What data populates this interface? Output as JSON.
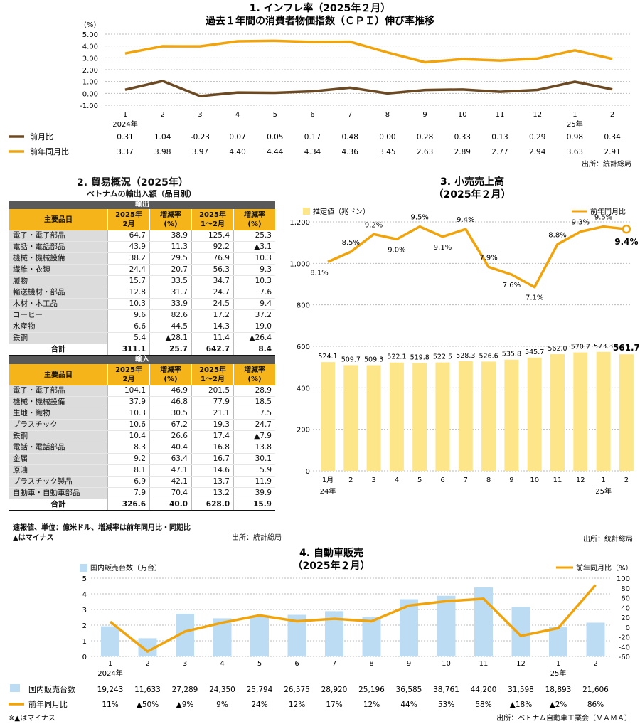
{
  "chart_data": [
    {
      "id": "cpi",
      "type": "line",
      "title": "1. インフレ率（2025年２月）",
      "subtitle": "過去１年間の消費者物価指数（ＣＰＩ）伸び率推移",
      "ylabel": "(%)",
      "ylim": [
        -1.0,
        5.0
      ],
      "yticks": [
        "5.00",
        "4.00",
        "3.00",
        "2.00",
        "1.00",
        "0.00",
        "-1.00"
      ],
      "categories": [
        "1",
        "2",
        "3",
        "4",
        "5",
        "6",
        "7",
        "8",
        "9",
        "10",
        "11",
        "12",
        "1",
        "2"
      ],
      "year_labels": [
        "2024年",
        "25年"
      ],
      "series": [
        {
          "name": "前月比",
          "color": "#6b4a23",
          "values": [
            0.31,
            1.04,
            -0.23,
            0.07,
            0.05,
            0.17,
            0.48,
            0.0,
            0.28,
            0.33,
            0.13,
            0.29,
            0.98,
            0.34
          ],
          "labels": [
            "0.31",
            "1.04",
            "-0.23",
            "0.07",
            "0.05",
            "0.17",
            "0.48",
            "0.00",
            "0.28",
            "0.33",
            "0.13",
            "0.29",
            "0.98",
            "0.34"
          ]
        },
        {
          "name": "前年同月比",
          "color": "#f0a30a",
          "values": [
            3.37,
            3.98,
            3.97,
            4.4,
            4.44,
            4.34,
            4.36,
            3.45,
            2.63,
            2.89,
            2.77,
            2.94,
            3.63,
            2.91
          ],
          "labels": [
            "3.37",
            "3.98",
            "3.97",
            "4.40",
            "4.44",
            "4.34",
            "4.36",
            "3.45",
            "2.63",
            "2.89",
            "2.77",
            "2.94",
            "3.63",
            "2.91"
          ]
        }
      ],
      "source": "出所：統計総局"
    },
    {
      "id": "trade",
      "type": "table",
      "title": "2. 貿易概況（2025年）",
      "subtitle": "ベトナムの輸出入額（品目別）",
      "columns": [
        "主要品目",
        "2025年\n2月",
        "増減率\n(%)",
        "2025年\n1～2月",
        "増減率\n(%)"
      ],
      "export": {
        "label": "輸出",
        "rows": [
          [
            "電子・電子部品",
            "64.7",
            "38.9",
            "125.4",
            "25.3"
          ],
          [
            "電話・電話部品",
            "43.9",
            "11.3",
            "92.2",
            "▲3.1"
          ],
          [
            "機械・機械設備",
            "38.2",
            "29.5",
            "76.9",
            "10.3"
          ],
          [
            "繊維・衣類",
            "24.4",
            "20.7",
            "56.3",
            "9.3"
          ],
          [
            "履物",
            "15.7",
            "33.5",
            "34.7",
            "10.3"
          ],
          [
            "輸送機材・部品",
            "12.8",
            "31.7",
            "24.7",
            "7.6"
          ],
          [
            "木材・木工品",
            "10.3",
            "33.9",
            "24.5",
            "9.4"
          ],
          [
            "コーヒー",
            "9.6",
            "82.6",
            "17.2",
            "37.2"
          ],
          [
            "水産物",
            "6.6",
            "44.5",
            "14.3",
            "19.0"
          ],
          [
            "鉄鋼",
            "5.4",
            "▲28.1",
            "11.4",
            "▲26.4"
          ]
        ],
        "total": [
          "合計",
          "311.1",
          "25.7",
          "642.7",
          "8.4"
        ]
      },
      "import": {
        "label": "輸入",
        "rows": [
          [
            "電子・電子部品",
            "104.1",
            "46.9",
            "201.5",
            "28.9"
          ],
          [
            "機械・機械設備",
            "37.9",
            "46.8",
            "77.9",
            "18.5"
          ],
          [
            "生地・織物",
            "10.3",
            "30.5",
            "21.1",
            "7.5"
          ],
          [
            "プラスチック",
            "10.6",
            "67.2",
            "19.3",
            "24.7"
          ],
          [
            "鉄鋼",
            "10.4",
            "26.6",
            "17.4",
            "▲7.9"
          ],
          [
            "電話・電話部品",
            "8.3",
            "40.4",
            "16.8",
            "13.8"
          ],
          [
            "金属",
            "9.2",
            "63.4",
            "16.7",
            "30.1"
          ],
          [
            "原油",
            "8.1",
            "47.1",
            "14.6",
            "5.9"
          ],
          [
            "プラスチック製品",
            "6.9",
            "42.1",
            "13.7",
            "11.9"
          ],
          [
            "自動車・自動車部品",
            "7.9",
            "70.4",
            "13.2",
            "39.9"
          ]
        ],
        "total": [
          "合計",
          "326.6",
          "40.0",
          "628.0",
          "15.9"
        ]
      },
      "note1": "速報値、単位：億米ドル、増減率は前年同月比・同期比",
      "note2": "▲はマイナス",
      "source": "出所：統計総局"
    },
    {
      "id": "retail",
      "type": "bar",
      "title": "3. 小売売上高",
      "subtitle": "（2025年２月）",
      "categories": [
        "1月",
        "2",
        "3",
        "4",
        "5",
        "6",
        "7",
        "8",
        "9",
        "10",
        "11",
        "12",
        "1",
        "2"
      ],
      "year_labels": [
        "24年",
        "25年"
      ],
      "ylim": [
        0,
        1200
      ],
      "yticks": [
        "1,200",
        "1,000",
        "800",
        "600",
        "400",
        "200",
        "0"
      ],
      "bar_series": {
        "name": "推定値（兆ドン）",
        "color": "#fde58a",
        "values": [
          524.1,
          509.7,
          509.3,
          522.1,
          519.8,
          522.5,
          528.3,
          526.6,
          535.8,
          545.7,
          562.0,
          570.7,
          573.3,
          561.7
        ],
        "labels": [
          "524.1",
          "509.7",
          "509.3",
          "522.1",
          "519.8",
          "522.5",
          "528.3",
          "526.6",
          "535.8",
          "545.7",
          "562.0",
          "570.7",
          "573.3",
          "561.7"
        ]
      },
      "line_series": {
        "name": "前年同月比",
        "color": "#f0a30a",
        "values": [
          8.1,
          8.5,
          9.2,
          9.0,
          9.5,
          9.1,
          9.4,
          7.9,
          7.6,
          7.1,
          8.8,
          9.3,
          9.5,
          9.4
        ],
        "labels": [
          "8.1%",
          "8.5%",
          "9.2%",
          "9.0%",
          "9.5%",
          "9.1%",
          "9.4%",
          "7.9%",
          "7.6%",
          "7.1%",
          "8.8%",
          "9.3%",
          "9.5%",
          "9.4%"
        ]
      },
      "source": "出所：統計総局"
    },
    {
      "id": "auto",
      "type": "bar",
      "title": "4. 自動車販売",
      "subtitle": "（2025年２月）",
      "categories": [
        "1",
        "2",
        "3",
        "4",
        "5",
        "6",
        "7",
        "8",
        "9",
        "10",
        "11",
        "12",
        "1",
        "2"
      ],
      "year_labels": [
        "2024年",
        "25年"
      ],
      "ylim": [
        0,
        5
      ],
      "yticks": [
        "5",
        "4",
        "3",
        "2",
        "1",
        "0"
      ],
      "y2lim": [
        -60,
        100
      ],
      "y2ticks": [
        "100",
        "80",
        "60",
        "40",
        "20",
        "0",
        "-20",
        "-40",
        "-60"
      ],
      "bar_series": {
        "name": "国内販売台数（万台）",
        "color": "#bcdcf4",
        "values": [
          1.9243,
          1.1633,
          2.7289,
          2.435,
          2.5794,
          2.6575,
          2.892,
          2.5196,
          3.6585,
          3.8761,
          4.42,
          3.1598,
          1.8893,
          2.1606
        ]
      },
      "line_series": {
        "name": "前年同月比（%）",
        "color": "#f0a30a",
        "values": [
          11,
          -50,
          -9,
          9,
          24,
          12,
          17,
          12,
          44,
          53,
          58,
          -18,
          -2,
          86
        ]
      },
      "table_rows": [
        {
          "name": "国内販売台数",
          "values": [
            "19,243",
            "11,633",
            "27,289",
            "24,350",
            "25,794",
            "26,575",
            "28,920",
            "25,196",
            "36,585",
            "38,761",
            "44,200",
            "31,598",
            "18,893",
            "21,606"
          ]
        },
        {
          "name": "前年同月比",
          "values": [
            "11%",
            "▲50%",
            "▲9%",
            "9%",
            "24%",
            "12%",
            "17%",
            "12%",
            "44%",
            "53%",
            "58%",
            "▲18%",
            "▲2%",
            "86%"
          ]
        }
      ],
      "note": "※▲はマイナス",
      "source": "出所：ベトナム自動車工業会（ＶＡＭＡ）"
    }
  ]
}
